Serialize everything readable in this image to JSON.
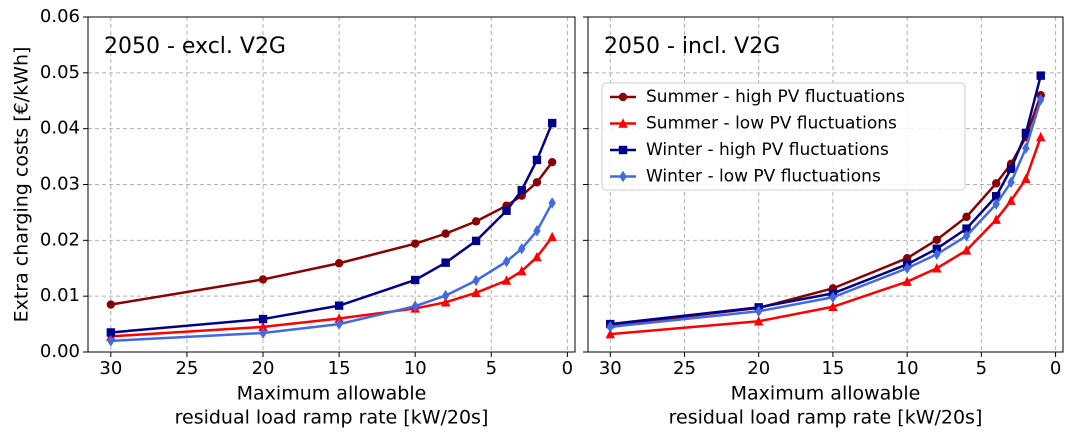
{
  "chart_data": [
    {
      "type": "line",
      "title": "2050 - excl. V2G",
      "ylabel": "Extra charging costs [€/kWh]",
      "xlabel": [
        "Maximum allowable",
        "residual load ramp rate [kW/20s]"
      ],
      "x": [
        30,
        20,
        15,
        10,
        8,
        6,
        4,
        3,
        2,
        1
      ],
      "xlim": [
        31.5,
        -0.5
      ],
      "xticks": [
        30,
        25,
        20,
        15,
        10,
        5,
        0
      ],
      "ylim": [
        0,
        0.06
      ],
      "yticks": [
        {
          "value": 0,
          "label": "0.00"
        },
        {
          "value": 0.01,
          "label": "0.01"
        },
        {
          "value": 0.02,
          "label": "0.02"
        },
        {
          "value": 0.03,
          "label": "0.03"
        },
        {
          "value": 0.04,
          "label": "0.04"
        },
        {
          "value": 0.05,
          "label": "0.05"
        },
        {
          "value": 0.06,
          "label": "0.06"
        }
      ],
      "grid": true,
      "series": [
        {
          "color": "#8b0000",
          "marker": "circle",
          "values": [
            0.0085,
            0.013,
            0.0159,
            0.0194,
            0.0212,
            0.0234,
            0.0262,
            0.028,
            0.0304,
            0.034
          ]
        },
        {
          "color": "#ff0000",
          "marker": "triangle",
          "values": [
            0.0028,
            0.0045,
            0.006,
            0.0078,
            0.0089,
            0.0106,
            0.0128,
            0.0145,
            0.017,
            0.0206
          ]
        },
        {
          "color": "#00008b",
          "marker": "square",
          "values": [
            0.0035,
            0.0059,
            0.0083,
            0.0129,
            0.016,
            0.0199,
            0.0253,
            0.029,
            0.0344,
            0.041
          ]
        },
        {
          "color": "#4169e1",
          "marker": "diamond",
          "values": [
            0.002,
            0.0034,
            0.005,
            0.0082,
            0.0101,
            0.0128,
            0.0162,
            0.0185,
            0.0217,
            0.0267
          ]
        }
      ]
    },
    {
      "type": "line",
      "title": "2050 - incl. V2G",
      "xlabel": [
        "Maximum allowable",
        "residual load ramp rate [kW/20s]"
      ],
      "x": [
        30,
        20,
        15,
        10,
        8,
        6,
        4,
        3,
        2,
        1
      ],
      "xlim": [
        31.5,
        -0.5
      ],
      "xticks": [
        30,
        25,
        20,
        15,
        10,
        5,
        0
      ],
      "grid": true,
      "legend": "upper left",
      "series": [
        {
          "name": "Summer - high PV fluctuations",
          "color": "#8b0000",
          "marker": "circle",
          "values": [
            0.0048,
            0.0079,
            0.0114,
            0.0168,
            0.0201,
            0.0242,
            0.0302,
            0.0337,
            0.0385,
            0.046
          ]
        },
        {
          "name": "Summer - low PV fluctuations",
          "color": "#ff0000",
          "marker": "triangle",
          "values": [
            0.0032,
            0.0055,
            0.0081,
            0.0126,
            0.015,
            0.0182,
            0.0237,
            0.0271,
            0.031,
            0.0385
          ]
        },
        {
          "name": "Winter - high PV fluctuations",
          "color": "#00008b",
          "marker": "square",
          "values": [
            0.005,
            0.008,
            0.0105,
            0.0157,
            0.0185,
            0.0221,
            0.0279,
            0.0328,
            0.0392,
            0.0495
          ]
        },
        {
          "name": "Winter - low PV fluctuations",
          "color": "#4169e1",
          "marker": "diamond",
          "values": [
            0.0045,
            0.0073,
            0.0098,
            0.015,
            0.0175,
            0.0208,
            0.0265,
            0.0304,
            0.0365,
            0.0452
          ]
        }
      ]
    }
  ]
}
